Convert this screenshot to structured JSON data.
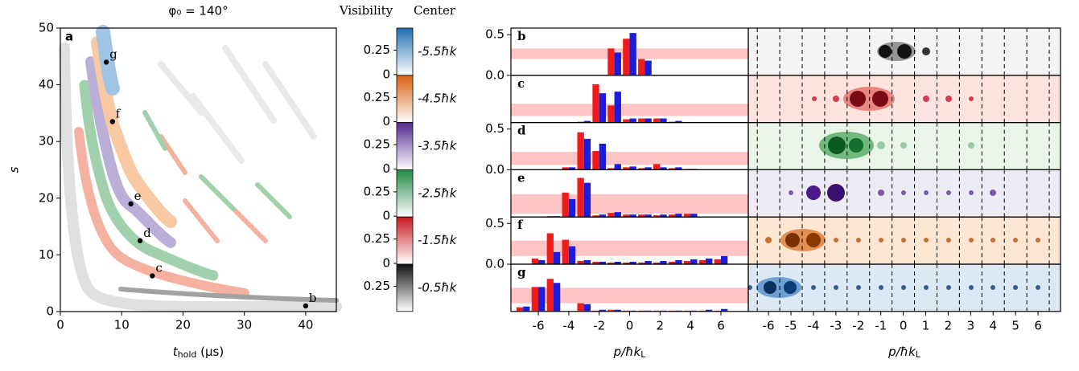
{
  "chart_data": [
    {
      "type": "scatter",
      "title": "φ₀ = 140°",
      "panel_label": "a",
      "xlabel_symbol": "t",
      "xlabel_subscript": "hold",
      "xlabel_unit": "(μs)",
      "ylabel": "s",
      "xlim": [
        0,
        45
      ],
      "ylim": [
        0,
        50
      ],
      "xticks": [
        0,
        10,
        20,
        30,
        40
      ],
      "yticks": [
        0,
        10,
        20,
        30,
        40,
        50
      ],
      "x": [
        40,
        15,
        13,
        11.5,
        8.5,
        7.5
      ],
      "values": [
        1,
        6.3,
        12.5,
        19,
        33.5,
        44
      ],
      "point_labels": [
        "b",
        "c",
        "d",
        "e",
        "f",
        "g"
      ],
      "color": "#000000"
    },
    {
      "type": "colorbar",
      "title": "Visibility",
      "title2": "Center",
      "segments": [
        {
          "name": "-5.5ħk",
          "color": "#1f6fb4",
          "lim": [
            0,
            0.47
          ],
          "ticks": [
            0,
            0.25
          ]
        },
        {
          "name": "-4.5ħk",
          "color": "#d95f0e",
          "lim": [
            0,
            0.47
          ],
          "ticks": [
            0,
            0.25
          ]
        },
        {
          "name": "-3.5ħk",
          "color": "#54278f",
          "lim": [
            0,
            0.47
          ],
          "ticks": [
            0,
            0.25
          ]
        },
        {
          "name": "-2.5ħk",
          "color": "#238b45",
          "lim": [
            0,
            0.47
          ],
          "ticks": [
            0,
            0.25
          ]
        },
        {
          "name": "-1.5ħk",
          "color": "#cb181d",
          "lim": [
            0,
            0.47
          ],
          "ticks": [
            0,
            0.25
          ]
        },
        {
          "name": "-0.5ħk",
          "color": "#111111",
          "lim": [
            0,
            0.47
          ],
          "ticks": [
            0.25
          ]
        }
      ]
    },
    {
      "type": "bar",
      "panel_label": "b",
      "x": [
        -7,
        -6,
        -5,
        -4,
        -3,
        -2,
        -1,
        0,
        1,
        2,
        3,
        4,
        5,
        6,
        7
      ],
      "xlim": [
        -7.8,
        7.8
      ],
      "ylim": [
        0,
        0.58
      ],
      "yticks": [
        {
          "value": 0,
          "label": "0.0"
        },
        {
          "value": 0.5,
          "label": "0.5"
        }
      ],
      "band": [
        0.2,
        0.33
      ],
      "series": [
        {
          "color": "#ee1c1c",
          "values": [
            null,
            null,
            null,
            null,
            null,
            null,
            0.33,
            0.45,
            0.2,
            null,
            null,
            null,
            null,
            null,
            null
          ]
        },
        {
          "color": "#1c1cdd",
          "values": [
            null,
            null,
            null,
            null,
            null,
            null,
            0.28,
            0.52,
            0.18,
            null,
            null,
            null,
            null,
            null,
            null
          ]
        }
      ]
    },
    {
      "type": "bar",
      "panel_label": "c",
      "x": [
        -7,
        -6,
        -5,
        -4,
        -3,
        -2,
        -1,
        0,
        1,
        2,
        3,
        4,
        5,
        6,
        7
      ],
      "xlim": [
        -7.8,
        7.8
      ],
      "ylim": [
        0,
        0.58
      ],
      "band": [
        0.08,
        0.23
      ],
      "series": [
        {
          "color": "#ee1c1c",
          "values": [
            null,
            null,
            null,
            null,
            0.01,
            0.47,
            0.21,
            0.04,
            0.05,
            0.05,
            0.01,
            null,
            null,
            null,
            null
          ]
        },
        {
          "color": "#1c1cdd",
          "values": [
            null,
            null,
            null,
            null,
            0.02,
            0.36,
            0.38,
            0.05,
            0.05,
            0.05,
            0.02,
            null,
            null,
            null,
            null
          ]
        }
      ]
    },
    {
      "type": "bar",
      "panel_label": "d",
      "x": [
        -7,
        -6,
        -5,
        -4,
        -3,
        -2,
        -1,
        0,
        1,
        2,
        3,
        4,
        5,
        6,
        7
      ],
      "xlim": [
        -7.8,
        7.8
      ],
      "ylim": [
        0,
        0.58
      ],
      "yticks": [
        {
          "value": 0,
          "label": "0.0"
        },
        {
          "value": 0.5,
          "label": "0.5"
        }
      ],
      "band": [
        0.06,
        0.22
      ],
      "series": [
        {
          "color": "#ee1c1c",
          "values": [
            null,
            null,
            null,
            0.03,
            0.46,
            0.23,
            0.02,
            0.03,
            0.02,
            0.07,
            0.02,
            0.01,
            null,
            null,
            null
          ]
        },
        {
          "color": "#1c1cdd",
          "values": [
            null,
            null,
            null,
            0.03,
            0.38,
            0.32,
            0.07,
            0.04,
            0.03,
            0.03,
            0.03,
            0.01,
            null,
            null,
            null
          ]
        }
      ]
    },
    {
      "type": "bar",
      "panel_label": "e",
      "x": [
        -7,
        -6,
        -5,
        -4,
        -3,
        -2,
        -1,
        0,
        1,
        2,
        3,
        4,
        5,
        6,
        7
      ],
      "xlim": [
        -7.8,
        7.8
      ],
      "ylim": [
        0,
        0.58
      ],
      "band": [
        0.04,
        0.28
      ],
      "series": [
        {
          "color": "#ee1c1c",
          "values": [
            null,
            null,
            0.01,
            0.3,
            0.48,
            0.02,
            0.05,
            0.03,
            0.03,
            0.02,
            0.03,
            0.04,
            null,
            null,
            null
          ]
        },
        {
          "color": "#1c1cdd",
          "values": [
            null,
            null,
            0.01,
            0.22,
            0.42,
            0.03,
            0.06,
            0.03,
            0.03,
            0.03,
            0.04,
            0.04,
            null,
            null,
            null
          ]
        }
      ]
    },
    {
      "type": "bar",
      "panel_label": "f",
      "x": [
        -7,
        -6,
        -5,
        -4,
        -3,
        -2,
        -1,
        0,
        1,
        2,
        3,
        4,
        5,
        6,
        7
      ],
      "xlim": [
        -7.8,
        7.8
      ],
      "ylim": [
        0,
        0.58
      ],
      "yticks": [
        {
          "value": 0,
          "label": "0.0"
        },
        {
          "value": 0.5,
          "label": "0.5"
        }
      ],
      "band": [
        0.1,
        0.29
      ],
      "series": [
        {
          "color": "#ee1c1c",
          "values": [
            null,
            0.07,
            0.38,
            0.3,
            0.04,
            0.03,
            0.02,
            0.02,
            0.02,
            0.02,
            0.03,
            0.04,
            0.05,
            0.06,
            null
          ]
        },
        {
          "color": "#1c1cdd",
          "values": [
            null,
            0.05,
            0.15,
            0.22,
            0.05,
            0.03,
            0.03,
            0.03,
            0.04,
            0.04,
            0.05,
            0.06,
            0.07,
            0.1,
            null
          ]
        }
      ]
    },
    {
      "type": "bar",
      "panel_label": "g",
      "x": [
        -7,
        -6,
        -5,
        -4,
        -3,
        -2,
        -1,
        0,
        1,
        2,
        3,
        4,
        5,
        6,
        7
      ],
      "xlim": [
        -7.8,
        7.8
      ],
      "ylim": [
        0,
        0.58
      ],
      "band": [
        0.1,
        0.29
      ],
      "xticks": [
        -6,
        -4,
        -2,
        0,
        2,
        4,
        6
      ],
      "xlabel": "p/ħk",
      "xlabel_subscript": "L",
      "series": [
        {
          "color": "#ee1c1c",
          "values": [
            0.05,
            0.3,
            0.4,
            null,
            0.1,
            0.01,
            0.02,
            0.01,
            0.01,
            0.01,
            0.01,
            0.01,
            0.01,
            0.01,
            null
          ]
        },
        {
          "color": "#1c1cdd",
          "values": [
            0.06,
            0.3,
            0.35,
            null,
            0.09,
            0.02,
            0.02,
            0.01,
            0.01,
            0.01,
            0.01,
            0.01,
            0.02,
            0.03,
            null
          ]
        }
      ]
    },
    {
      "type": "image",
      "background": "#f4f4f4",
      "xlim": [
        -6.9,
        7.0
      ],
      "dividers": [
        -6.5,
        -5.5,
        -4.5,
        -3.5,
        -2.5,
        -1.5,
        -0.5,
        0.5,
        1.5,
        2.5,
        3.5,
        4.5,
        5.5,
        6.5
      ]
    },
    {
      "type": "image",
      "background": "#fde3df",
      "xlim": [
        -6.9,
        7.0
      ],
      "dividers": [
        -6.5,
        -5.5,
        -4.5,
        -3.5,
        -2.5,
        -1.5,
        -0.5,
        0.5,
        1.5,
        2.5,
        3.5,
        4.5,
        5.5,
        6.5
      ]
    },
    {
      "type": "image",
      "background": "#e9f5e6",
      "xlim": [
        -6.9,
        7.0
      ],
      "dividers": [
        -6.5,
        -5.5,
        -4.5,
        -3.5,
        -2.5,
        -1.5,
        -0.5,
        0.5,
        1.5,
        2.5,
        3.5,
        4.5,
        5.5,
        6.5
      ]
    },
    {
      "type": "image",
      "background": "#edecf4",
      "xlim": [
        -6.9,
        7.0
      ],
      "dividers": [
        -6.5,
        -5.5,
        -4.5,
        -3.5,
        -2.5,
        -1.5,
        -0.5,
        0.5,
        1.5,
        2.5,
        3.5,
        4.5,
        5.5,
        6.5
      ]
    },
    {
      "type": "image",
      "background": "#fde7d2",
      "xlim": [
        -6.9,
        7.0
      ],
      "dividers": [
        -6.5,
        -5.5,
        -4.5,
        -3.5,
        -2.5,
        -1.5,
        -0.5,
        0.5,
        1.5,
        2.5,
        3.5,
        4.5,
        5.5,
        6.5
      ]
    },
    {
      "type": "image",
      "background": "#dce9f5",
      "xlim": [
        -6.9,
        7.0
      ],
      "dividers": [
        -6.5,
        -5.5,
        -4.5,
        -3.5,
        -2.5,
        -1.5,
        -0.5,
        0.5,
        1.5,
        2.5,
        3.5,
        4.5,
        5.5,
        6.5
      ],
      "xticks": [
        -6,
        -5,
        -4,
        -3,
        -2,
        -1,
        0,
        1,
        2,
        3,
        4,
        5,
        6
      ],
      "xlabel": "p/ħk",
      "xlabel_subscript": "L"
    }
  ]
}
